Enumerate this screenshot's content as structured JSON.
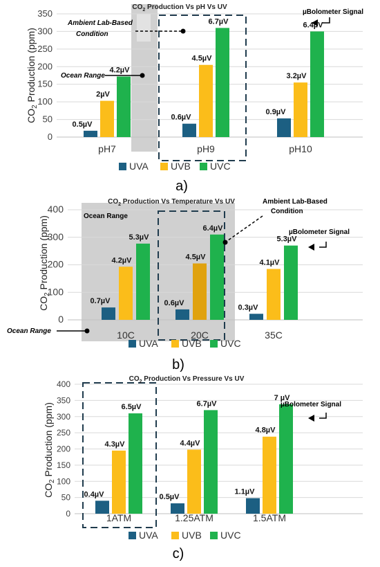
{
  "colors": {
    "uva": "#1c5f82",
    "uvb": "#fbbd1a",
    "uvb_dark": "#e0a20f",
    "uvc": "#1fb24d",
    "axis": "#595959",
    "tick": "#404040",
    "grid": "#d9d9d9",
    "shade": "#d0d0d0",
    "box": "#1f3b4d"
  },
  "legend_labels": [
    "UVA",
    "UVB",
    "UVC"
  ],
  "panel_labels": [
    "a)",
    "b)",
    "c)"
  ],
  "annotations": {
    "a": {
      "ambient": "Ambient Lab-Based Condition",
      "ambient_line1": "Ambient Lab-Based",
      "ambient_line2": "Condition",
      "ocean": "Ocean Range",
      "signal": "µBolometer Signal"
    },
    "b": {
      "ambient_line1": "Ambient Lab-Based",
      "ambient_line2": "Condition",
      "ocean_inside": "Ocean Range",
      "ocean_outside": "Ocean Range",
      "signal": "µBolometer Signal"
    },
    "c": {
      "signal": "µBolometer Signal"
    }
  },
  "chart_data": [
    {
      "type": "bar",
      "title": "CO2 Production Vs pH Vs UV",
      "title_prefix": "CO",
      "title_sub": "2",
      "title_suffix": " Production Vs pH Vs UV",
      "ylabel": "CO2 Production (ppm)",
      "categories": [
        "pH7",
        "pH9",
        "pH10"
      ],
      "ylim": [
        0,
        350
      ],
      "yticks": [
        0,
        50,
        100,
        150,
        200,
        250,
        300,
        350
      ],
      "grid": true,
      "legend": "bottom",
      "series": [
        {
          "name": "UVA",
          "values": [
            18,
            38,
            53
          ],
          "labels": [
            "0.5µV",
            "0.6µV",
            "0.9µV"
          ]
        },
        {
          "name": "UVB",
          "values": [
            103,
            205,
            155
          ],
          "labels": [
            "2µV",
            "4.5µV",
            "3.2µV"
          ]
        },
        {
          "name": "UVC",
          "values": [
            172,
            310,
            300
          ],
          "labels": [
            "4.2µV",
            "6.7µV",
            "6.4µV"
          ]
        }
      ]
    },
    {
      "type": "bar",
      "title": "CO2 Production Vs Temperature Vs UV",
      "title_prefix": "CO",
      "title_sub": "2",
      "title_suffix": " Production Vs Temperature Vs UV",
      "ylabel": "CO2 Production (ppm)",
      "categories": [
        "10C",
        "20C",
        "35C"
      ],
      "ylim": [
        0,
        400
      ],
      "yticks": [
        0,
        100,
        200,
        300,
        400
      ],
      "grid": true,
      "legend": "bottom",
      "series": [
        {
          "name": "UVA",
          "values": [
            45,
            38,
            22
          ],
          "labels": [
            "0.7µV",
            "0.6µV",
            "0.3µV"
          ]
        },
        {
          "name": "UVB",
          "values": [
            193,
            205,
            185
          ],
          "labels": [
            "4.2µV",
            "4.5µV",
            "4.1µV"
          ]
        },
        {
          "name": "UVC",
          "values": [
            277,
            310,
            270
          ],
          "labels": [
            "5.3µV",
            "6.4µV",
            "5.3µV"
          ]
        }
      ]
    },
    {
      "type": "bar",
      "title": "CO2 Production Vs Pressure Vs UV",
      "title_prefix": "CO",
      "title_sub": "2",
      "title_suffix": " Production Vs Pressure Vs UV",
      "ylabel": "CO2 Production (ppm)",
      "categories": [
        "1ATM",
        "1.25ATM",
        "1.5ATM"
      ],
      "ylim": [
        0,
        400
      ],
      "yticks": [
        0,
        50,
        100,
        150,
        200,
        250,
        300,
        350,
        400
      ],
      "grid": true,
      "legend": "bottom",
      "series": [
        {
          "name": "UVA",
          "values": [
            40,
            32,
            48
          ],
          "labels": [
            "0.4µV",
            "0.5µV",
            "1.1µV"
          ]
        },
        {
          "name": "UVB",
          "values": [
            195,
            198,
            238
          ],
          "labels": [
            "4.3µV",
            "4.4µV",
            "4.8µV"
          ]
        },
        {
          "name": "UVC",
          "values": [
            310,
            320,
            338
          ],
          "labels": [
            "6.5µV",
            "6.7µV",
            "7 µV"
          ]
        }
      ]
    }
  ]
}
